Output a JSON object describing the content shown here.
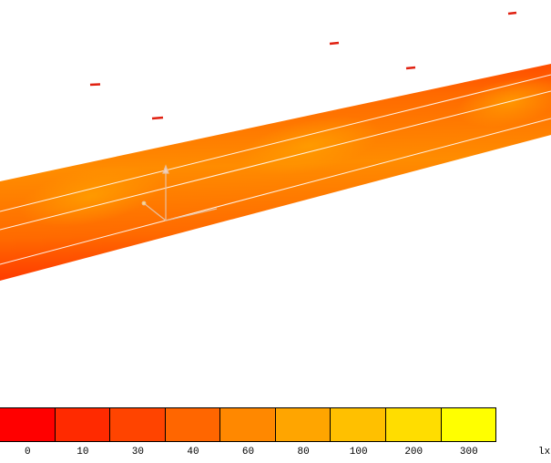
{
  "legend": {
    "unit": "lx",
    "bins": [
      {
        "label": "0",
        "color": "#ff0000"
      },
      {
        "label": "10",
        "color": "#ff2a00"
      },
      {
        "label": "30",
        "color": "#ff4400"
      },
      {
        "label": "40",
        "color": "#ff6600"
      },
      {
        "label": "60",
        "color": "#ff8800"
      },
      {
        "label": "80",
        "color": "#ffa500"
      },
      {
        "label": "100",
        "color": "#ffc000"
      },
      {
        "label": "200",
        "color": "#ffdd00"
      },
      {
        "label": "300",
        "color": "#ffff00"
      }
    ]
  }
}
